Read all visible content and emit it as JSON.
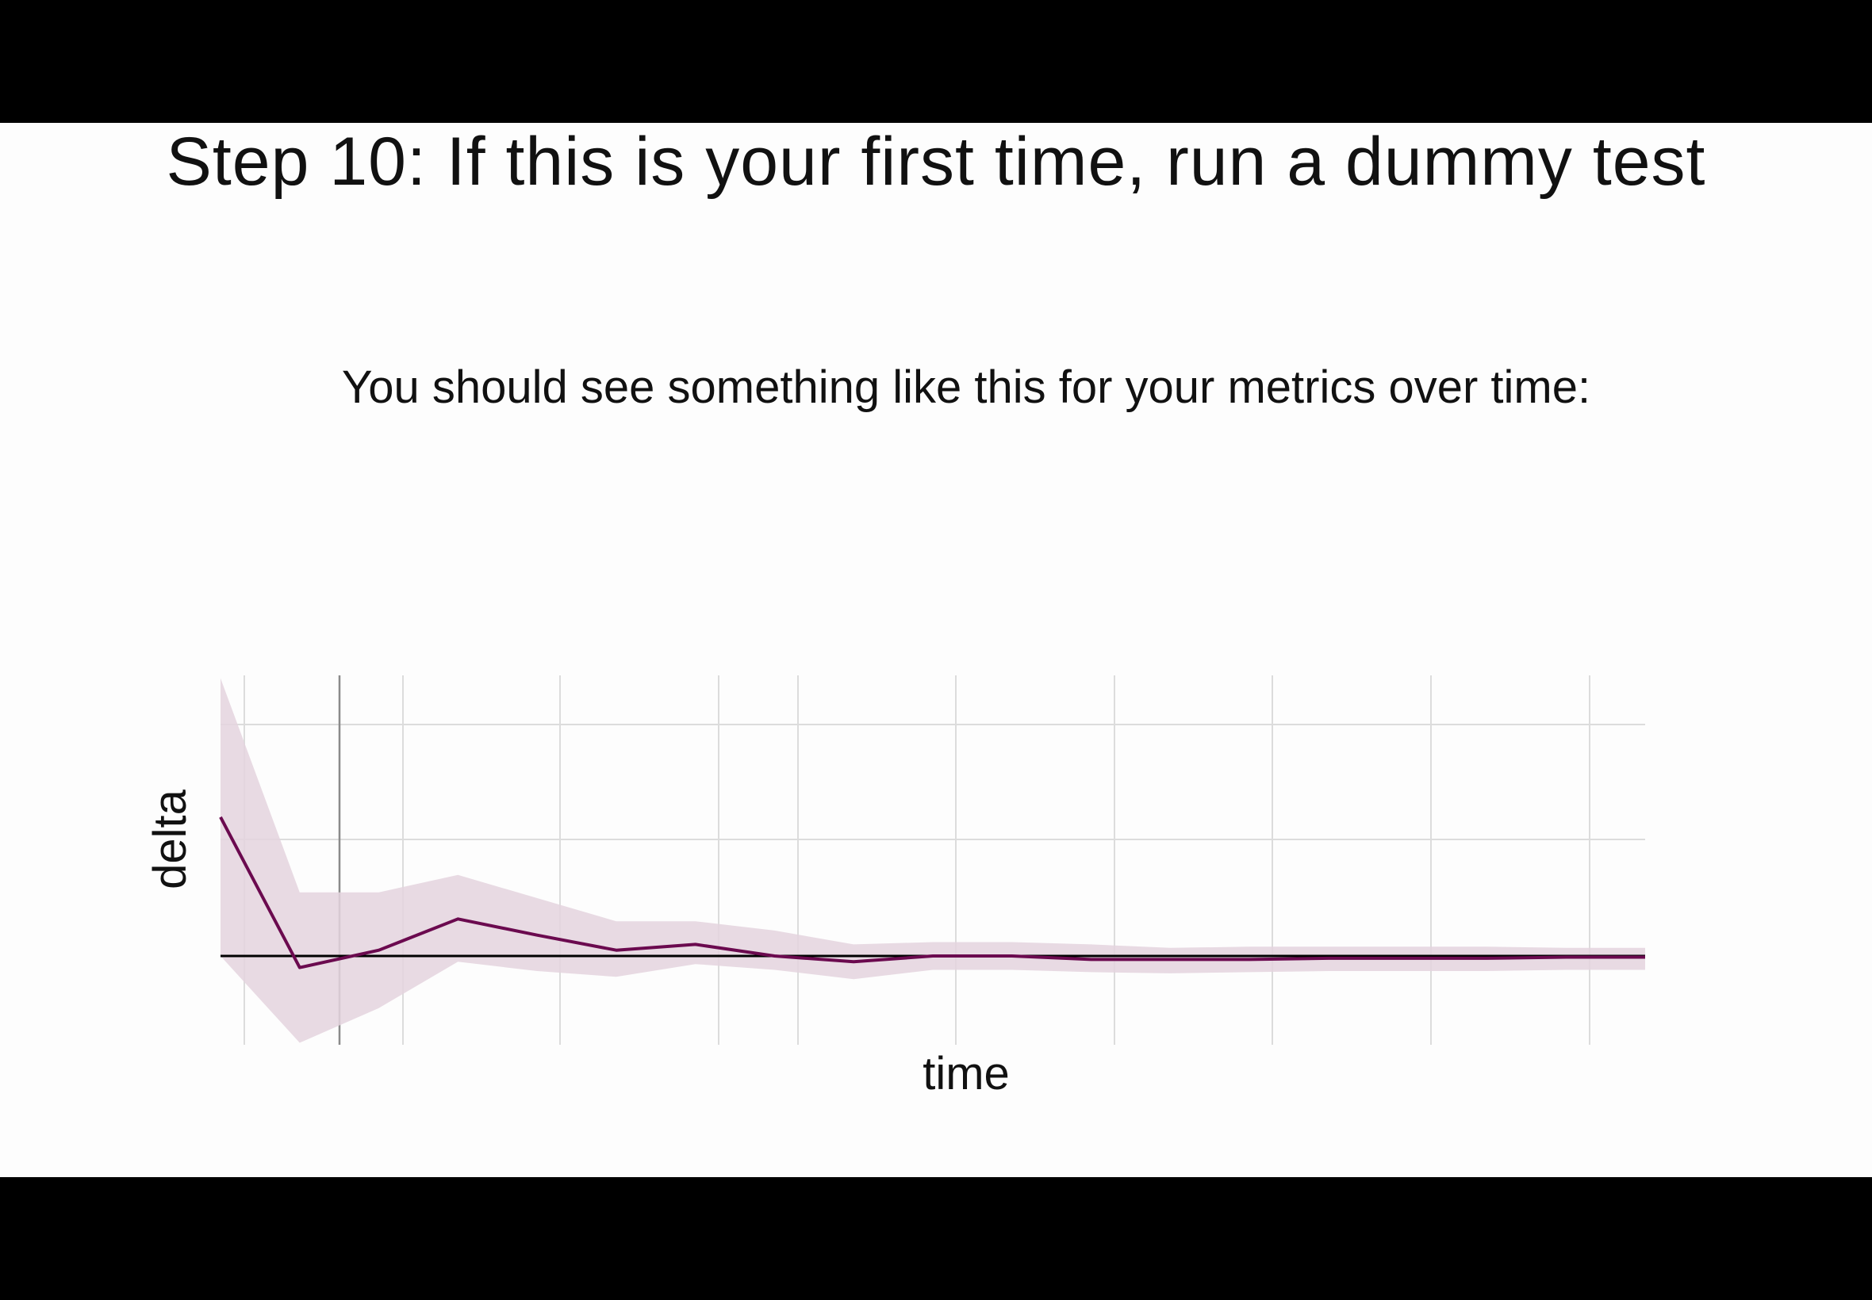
{
  "slide": {
    "title": "Step 10: If this is your first time, run a dummy test",
    "subtitle": "You should see something like this for your metrics over time:"
  },
  "colors": {
    "background": "#fdfdfd",
    "letterbox": "#000000",
    "line": "#6b0a4f",
    "band": "#e4d3de",
    "zero_line": "#000000",
    "grid": "#dcdcdc",
    "marker_line": "#8a8a8a"
  },
  "chart_data": {
    "type": "line",
    "xlabel": "time",
    "ylabel": "delta",
    "grid": true,
    "x": [
      0,
      1,
      2,
      3,
      4,
      5,
      6,
      7,
      8,
      9,
      10,
      11,
      12,
      13,
      14,
      15,
      16,
      17,
      18
    ],
    "series": [
      {
        "values": [
          1.2,
          -0.1,
          0.05,
          0.32,
          0.18,
          0.05,
          0.1,
          0.0,
          -0.05,
          0.0,
          0.0,
          -0.03,
          -0.03,
          -0.03,
          -0.02,
          -0.02,
          -0.02,
          -0.01,
          -0.01
        ],
        "band_upper": [
          2.4,
          0.55,
          0.55,
          0.7,
          0.5,
          0.3,
          0.3,
          0.22,
          0.1,
          0.12,
          0.12,
          0.1,
          0.07,
          0.08,
          0.08,
          0.08,
          0.08,
          0.07,
          0.07
        ],
        "band_lower": [
          0.0,
          -0.75,
          -0.45,
          -0.05,
          -0.13,
          -0.18,
          -0.07,
          -0.12,
          -0.2,
          -0.12,
          -0.12,
          -0.14,
          -0.15,
          -0.14,
          -0.13,
          -0.13,
          -0.13,
          -0.12,
          -0.12
        ]
      }
    ],
    "xlim": [
      0,
      18
    ],
    "ylim": [
      -0.75,
      2.4
    ]
  }
}
